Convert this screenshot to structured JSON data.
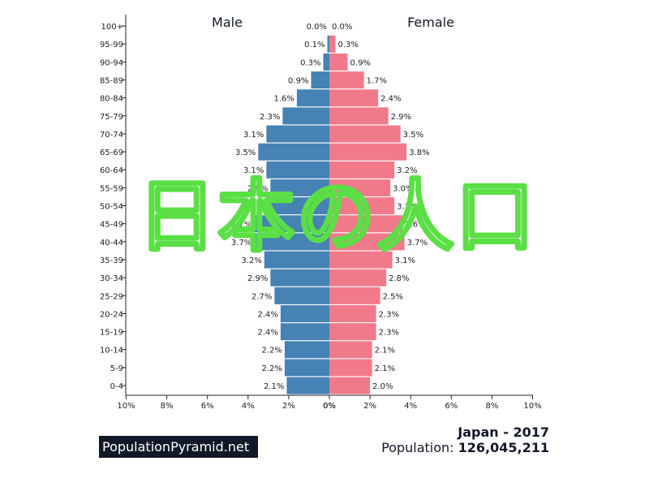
{
  "chart_data": {
    "type": "bar",
    "orientation": "horizontal-pyramid",
    "categories": [
      "100+",
      "95-99",
      "90-94",
      "85-89",
      "80-84",
      "75-79",
      "70-74",
      "65-69",
      "60-64",
      "55-59",
      "50-54",
      "45-49",
      "40-44",
      "35-39",
      "30-34",
      "25-29",
      "20-24",
      "15-19",
      "10-14",
      "5-9",
      "0-4"
    ],
    "series": [
      {
        "name": "Male",
        "color": "#4682b4",
        "values": [
          0.0,
          0.1,
          0.3,
          0.9,
          1.6,
          2.3,
          3.1,
          3.5,
          3.1,
          2.9,
          3.1,
          3.7,
          3.7,
          3.2,
          2.9,
          2.7,
          2.4,
          2.4,
          2.2,
          2.2,
          2.1
        ],
        "labels": [
          "0.0%",
          "0.1%",
          "0.3%",
          "0.9%",
          "1.6%",
          "2.3%",
          "3.1%",
          "3.5%",
          "3.1%",
          "2.9%",
          "3.1%",
          "3.7%",
          "3.7%",
          "3.2%",
          "2.9%",
          "2.7%",
          "2.4%",
          "2.4%",
          "2.2%",
          "2.2%",
          "2.1%"
        ]
      },
      {
        "name": "Female",
        "color": "#f07a8a",
        "values": [
          0.0,
          0.3,
          0.9,
          1.7,
          2.4,
          2.9,
          3.5,
          3.8,
          3.2,
          3.0,
          3.2,
          3.6,
          3.7,
          3.1,
          2.8,
          2.5,
          2.3,
          2.3,
          2.1,
          2.1,
          2.0
        ],
        "labels": [
          "0.0%",
          "0.3%",
          "0.9%",
          "1.7%",
          "2.4%",
          "2.9%",
          "3.5%",
          "3.8%",
          "3.2%",
          "3.0%",
          "3.2%",
          "3.6%",
          "3.7%",
          "3.1%",
          "2.8%",
          "2.5%",
          "2.3%",
          "2.3%",
          "2.1%",
          "2.1%",
          "2.0%"
        ]
      }
    ],
    "xlim": [
      0,
      10
    ],
    "male_ticks": [
      "10%",
      "8%",
      "6%",
      "4%",
      "2%",
      "0%"
    ],
    "female_ticks": [
      "0%",
      "2%",
      "4%",
      "6%",
      "8%",
      "10%"
    ],
    "overlay_text": "日本の人口",
    "overlay_color": "#5adf45"
  },
  "info": {
    "title": "Japan - 2017",
    "population_label": "Population: ",
    "population_value": "126,045,211"
  },
  "brand": "PopulationPyramid.net"
}
